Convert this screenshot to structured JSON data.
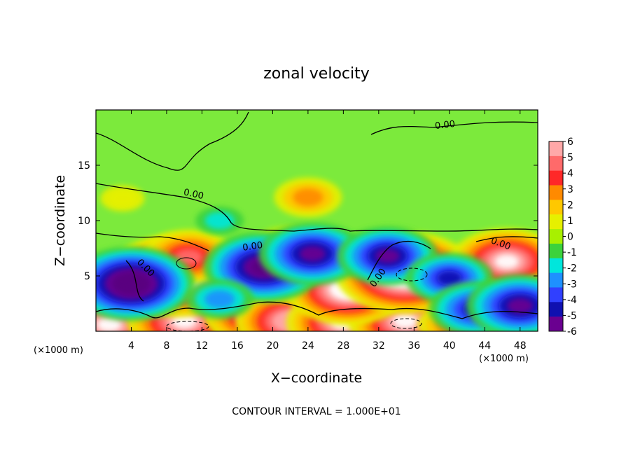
{
  "chart_data": {
    "type": "heatmap",
    "title": "zonal velocity",
    "xlabel": "X−coordinate",
    "ylabel": "Z−coordinate",
    "x_unit": "(×1000 m)",
    "z_unit": "(×1000 m)",
    "xlim": [
      0,
      50
    ],
    "ylim": [
      0,
      20
    ],
    "x_ticks": [
      4,
      8,
      12,
      16,
      20,
      24,
      28,
      32,
      36,
      40,
      44,
      48
    ],
    "y_ticks": [
      5,
      10,
      15
    ],
    "colorbar": {
      "ticks": [
        6,
        5,
        4,
        3,
        2,
        1,
        0,
        -1,
        -2,
        -3,
        -4,
        -5,
        -6
      ],
      "colors": [
        "#ffa8a8",
        "#ff6a6a",
        "#ff2828",
        "#ff8a00",
        "#ffc800",
        "#e6f000",
        "#a8f000",
        "#3cd23c",
        "#00e6dc",
        "#1e90ff",
        "#3040ff",
        "#1010b0",
        "#6a0090"
      ]
    },
    "contour_labels": [
      "0.00",
      "0.00",
      "0.00",
      "0.00",
      "0.00",
      "0.00"
    ],
    "contour_interval_text": "CONTOUR INTERVAL = 1.000E+01",
    "blobs": [
      {
        "x": 1.5,
        "z": 0.6,
        "v": 6.6
      },
      {
        "x": 10,
        "z": 0.9,
        "v": 6.5
      },
      {
        "x": 18,
        "z": 1.4,
        "v": 5.5
      },
      {
        "x": 22,
        "z": 0.9,
        "v": 6.2
      },
      {
        "x": 28,
        "z": 0.8,
        "v": 6.5
      },
      {
        "x": 35,
        "z": 0.9,
        "v": 6.5
      },
      {
        "x": 41,
        "z": 0.6,
        "v": 4
      },
      {
        "x": 9,
        "z": 5.0,
        "v": 8.5
      },
      {
        "x": 10.5,
        "z": 6.7,
        "v": 5
      },
      {
        "x": 23,
        "z": 6.0,
        "v": 8
      },
      {
        "x": 28.5,
        "z": 3.8,
        "v": 7.2
      },
      {
        "x": 35,
        "z": 5.3,
        "v": 8.5
      },
      {
        "x": 46.5,
        "z": 6.3,
        "v": 6.5
      },
      {
        "x": 4,
        "z": 4.3,
        "v": -7.5
      },
      {
        "x": 19,
        "z": 5.8,
        "v": -7
      },
      {
        "x": 24.5,
        "z": 7.0,
        "v": -6
      },
      {
        "x": 33,
        "z": 6.8,
        "v": -5.5
      },
      {
        "x": 40,
        "z": 4.8,
        "v": -4.5
      },
      {
        "x": 43,
        "z": 2.0,
        "v": -5
      },
      {
        "x": 48,
        "z": 2.3,
        "v": -6
      },
      {
        "x": 14,
        "z": 2.9,
        "v": -3
      },
      {
        "x": 24,
        "z": 12.1,
        "v": 3
      },
      {
        "x": 14,
        "z": 10.0,
        "v": -1.5
      },
      {
        "x": 3,
        "z": 12,
        "v": 1.2
      }
    ]
  },
  "colors": {
    "frame": "#000000",
    "background": "#ffffff",
    "field_base": "#7cea3c"
  }
}
